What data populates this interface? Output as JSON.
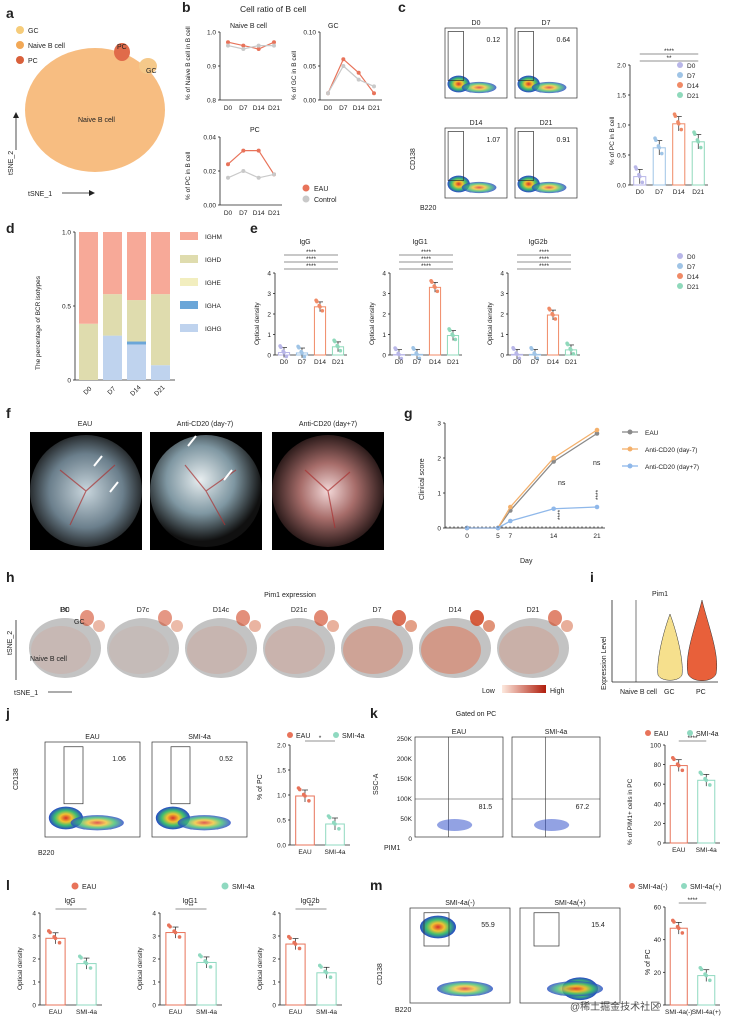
{
  "panels": {
    "a": {
      "letter": "a",
      "legend": [
        "GC",
        "Naive B cell",
        "PC"
      ],
      "labels": {
        "pc": "PC",
        "gc": "GC",
        "naive": "Naive B cell"
      },
      "xlabel": "tSNE_1",
      "ylabel": "tSNE_2"
    },
    "b": {
      "letter": "b",
      "title": "Cell ratio of B cell",
      "sub_naive": "Naive B cell",
      "sub_gc": "GC",
      "sub_pc": "PC",
      "ylabel_naive": "% of Naive B cell in B cell",
      "ylabel_gc": "% of GC in B cell",
      "ylabel_pc": "% of PC in B cell",
      "legend": [
        "EAU",
        "Control"
      ]
    },
    "c": {
      "letter": "c",
      "flow_titles": [
        "D0",
        "D7",
        "D14",
        "D21"
      ],
      "flow_values": [
        "0.12",
        "0.64",
        "1.07",
        "0.91"
      ],
      "ylabel_flow": "CD138",
      "xlabel_flow": "B220",
      "ylabel_bar": "% of PC in B cell",
      "legend": [
        "D0",
        "D7",
        "D14",
        "D21"
      ]
    },
    "d": {
      "letter": "d",
      "ylabel": "The percentage of BCR isotypes",
      "legend": [
        "IGHM",
        "IGHD",
        "IGHE",
        "IGHA",
        "IGHG"
      ]
    },
    "e": {
      "letter": "e",
      "titles": [
        "IgG",
        "IgG1",
        "IgG2b"
      ],
      "ylabel": "Optical density",
      "legend": [
        "D0",
        "D7",
        "D14",
        "D21"
      ]
    },
    "f": {
      "letter": "f",
      "titles": [
        "EAU",
        "Anti-CD20 (day-7)",
        "Anti-CD20 (day+7)"
      ]
    },
    "g": {
      "letter": "g",
      "ylabel": "Clinical score",
      "xlabel": "Day",
      "legend": [
        "EAU",
        "Anti-CD20 (day-7)",
        "Anti-CD20 (day+7)"
      ],
      "ns1": "ns",
      "ns2": "ns",
      "sig": "****"
    },
    "h": {
      "letter": "h",
      "title": "Pim1 expression",
      "groups": [
        "D0",
        "D7c",
        "D14c",
        "D21c",
        "D7",
        "D14",
        "D21"
      ],
      "labels": {
        "pc": "PC",
        "gc": "GC",
        "naive": "Naive B cell"
      },
      "xlabel": "tSNE_1",
      "ylabel": "tSNE_2",
      "scale_low": "Low",
      "scale_high": "High"
    },
    "i": {
      "letter": "i",
      "title": "Pim1",
      "ylabel": "Expression Level",
      "categories": [
        "Naive B cell",
        "GC",
        "PC"
      ]
    },
    "j": {
      "letter": "j",
      "flow_titles": [
        "EAU",
        "SMI-4a"
      ],
      "flow_values": [
        "1.06",
        "0.52"
      ],
      "ylabel_flow": "CD138",
      "xlabel_flow": "B220",
      "ylabel_bar": "% of PC",
      "legend": [
        "EAU",
        "SMI-4a"
      ],
      "sig": "*"
    },
    "k": {
      "letter": "k",
      "header": "Gated on PC",
      "flow_titles": [
        "EAU",
        "SMI-4a"
      ],
      "flow_values": [
        "81.5",
        "67.2"
      ],
      "ylabel_flow": "SSC-A",
      "xlabel_flow": "PIM1",
      "ylabel_bar": "% of PIM1+ cells in PC",
      "legend": [
        "EAU",
        "SMI-4a"
      ],
      "sig": "****",
      "yticks": [
        "250K",
        "200K",
        "150K",
        "100K",
        "50K",
        "0"
      ]
    },
    "l": {
      "letter": "l",
      "titles": [
        "IgG",
        "IgG1",
        "IgG2b"
      ],
      "ylabel": "Optical density",
      "legend": [
        "EAU",
        "SMI-4a"
      ],
      "sig": [
        "*",
        "**",
        "**"
      ]
    },
    "m": {
      "letter": "m",
      "flow_titles": [
        "SMI-4a(-)",
        "SMI-4a(+)"
      ],
      "flow_values": [
        "55.9",
        "15.4"
      ],
      "ylabel_flow": "CD138",
      "xlabel_flow": "B220",
      "ylabel_bar": "% of PC",
      "legend": [
        "SMI-4a(-)",
        "SMI-4a(+)"
      ],
      "sig": "****"
    }
  },
  "watermark": "@稀土掘金技术社区",
  "colors": {
    "eau": "#e8735a",
    "control": "#c9c9c9",
    "d0": "#b8b6e8",
    "d7": "#9fc4e6",
    "d14": "#f08a66",
    "d21": "#8fd9bb",
    "ighm": "#f7a998",
    "ighd": "#dfdcae",
    "ighe": "#f2eebf",
    "igha": "#6ba6d8",
    "ighg": "#bfd3ee",
    "flow": "#2646c8",
    "smi": "#8fd9c0"
  },
  "chart_data": [
    {
      "panel": "b",
      "type": "line",
      "categories": [
        "D0",
        "D7",
        "D14",
        "D21"
      ],
      "ylim": [
        0.8,
        1.0
      ],
      "series": [
        {
          "name": "EAU",
          "values": [
            0.97,
            0.96,
            0.95,
            0.97
          ]
        },
        {
          "name": "Control",
          "values": [
            0.96,
            0.95,
            0.96,
            0.96
          ]
        }
      ]
    },
    {
      "panel": "b",
      "type": "line",
      "categories": [
        "D0",
        "D7",
        "D14",
        "D21"
      ],
      "ylim": [
        0,
        0.1
      ],
      "series": [
        {
          "name": "EAU",
          "values": [
            0.01,
            0.06,
            0.04,
            0.01
          ]
        },
        {
          "name": "Control",
          "values": [
            0.01,
            0.05,
            0.03,
            0.02
          ]
        }
      ]
    },
    {
      "panel": "b",
      "type": "line",
      "categories": [
        "D0",
        "D7",
        "D14",
        "D21"
      ],
      "ylim": [
        0,
        0.04
      ],
      "series": [
        {
          "name": "EAU",
          "values": [
            0.024,
            0.032,
            0.032,
            0.018
          ]
        },
        {
          "name": "Control",
          "values": [
            0.016,
            0.02,
            0.016,
            0.018
          ]
        }
      ]
    },
    {
      "panel": "c",
      "type": "bar",
      "categories": [
        "D0",
        "D7",
        "D14",
        "D21"
      ],
      "values": [
        0.14,
        0.62,
        1.02,
        0.72
      ],
      "ylim": [
        0,
        2.0
      ],
      "sig": [
        "*",
        "****",
        "*",
        "**"
      ]
    },
    {
      "panel": "d",
      "type": "bar",
      "categories": [
        "D0",
        "D7",
        "D14",
        "D21"
      ],
      "series": [
        {
          "name": "IGHM",
          "values": [
            0.62,
            0.42,
            0.46,
            0.42
          ]
        },
        {
          "name": "IGHD",
          "values": [
            0.38,
            0.28,
            0.28,
            0.48
          ]
        },
        {
          "name": "IGHE",
          "values": [
            0,
            0,
            0,
            0
          ]
        },
        {
          "name": "IGHA",
          "values": [
            0,
            0,
            0.02,
            0
          ]
        },
        {
          "name": "IGHG",
          "values": [
            0,
            0.3,
            0.24,
            0.1
          ]
        }
      ],
      "ylim": [
        0,
        1.0
      ]
    },
    {
      "panel": "e",
      "type": "bar",
      "title": "IgG",
      "categories": [
        "D0",
        "D7",
        "D14",
        "D21"
      ],
      "values": [
        0.12,
        0.1,
        2.35,
        0.4
      ],
      "ylim": [
        0,
        4
      ]
    },
    {
      "panel": "e",
      "type": "bar",
      "title": "IgG1",
      "categories": [
        "D0",
        "D7",
        "D14",
        "D21"
      ],
      "values": [
        0.02,
        0.03,
        3.3,
        0.95
      ],
      "ylim": [
        0,
        4
      ]
    },
    {
      "panel": "e",
      "type": "bar",
      "title": "IgG2b",
      "categories": [
        "D0",
        "D7",
        "D14",
        "D21"
      ],
      "values": [
        0.03,
        0.03,
        1.95,
        0.25
      ],
      "ylim": [
        0,
        4
      ]
    },
    {
      "panel": "g",
      "type": "line",
      "x": [
        0,
        5,
        7,
        14,
        21
      ],
      "ylim": [
        0,
        3
      ],
      "series": [
        {
          "name": "EAU",
          "values": [
            0,
            0,
            0.5,
            1.9,
            2.7
          ]
        },
        {
          "name": "Anti-CD20 (day-7)",
          "values": [
            0,
            0,
            0.6,
            2.0,
            2.8
          ]
        },
        {
          "name": "Anti-CD20 (day+7)",
          "values": [
            0,
            0,
            0.2,
            0.55,
            0.6
          ]
        }
      ]
    },
    {
      "panel": "j",
      "type": "bar",
      "categories": [
        "EAU",
        "SMI-4a"
      ],
      "values": [
        0.98,
        0.42
      ],
      "ylim": [
        0,
        2.0
      ]
    },
    {
      "panel": "k",
      "type": "bar",
      "categories": [
        "EAU",
        "SMI-4a"
      ],
      "values": [
        79,
        64
      ],
      "ylim": [
        0,
        100
      ]
    },
    {
      "panel": "l",
      "type": "bar",
      "title": "IgG",
      "categories": [
        "EAU",
        "SMI-4a"
      ],
      "values": [
        2.9,
        1.8
      ],
      "ylim": [
        0,
        4
      ]
    },
    {
      "panel": "l",
      "type": "bar",
      "title": "IgG1",
      "categories": [
        "EAU",
        "SMI-4a"
      ],
      "values": [
        3.15,
        1.85
      ],
      "ylim": [
        0,
        4
      ]
    },
    {
      "panel": "l",
      "type": "bar",
      "title": "IgG2b",
      "categories": [
        "EAU",
        "SMI-4a"
      ],
      "values": [
        2.65,
        1.4
      ],
      "ylim": [
        0,
        4
      ]
    },
    {
      "panel": "m",
      "type": "bar",
      "categories": [
        "SMI-4a(-)",
        "SMI-4a(+)"
      ],
      "values": [
        47,
        18
      ],
      "ylim": [
        0,
        60
      ]
    }
  ]
}
